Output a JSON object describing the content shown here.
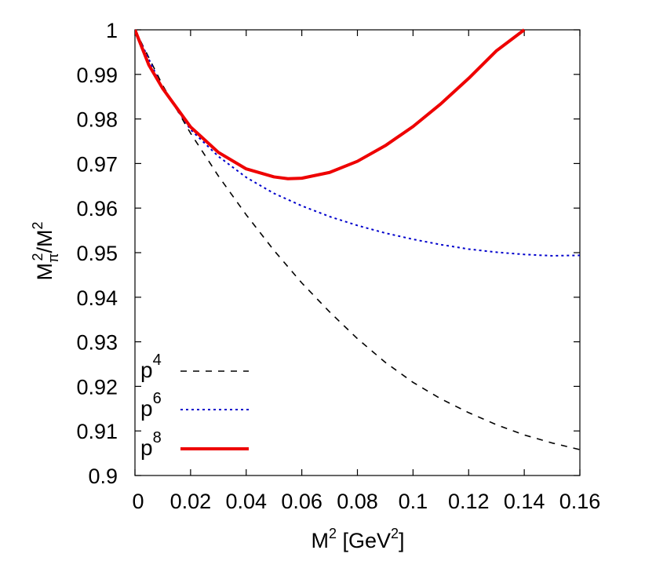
{
  "chart_data": {
    "type": "line",
    "xlabel": {
      "base": "M",
      "sup": "2",
      "middle": " [GeV",
      "sup2": "2",
      "end": "]"
    },
    "ylabel": {
      "base": "M",
      "sub": "π",
      "sup": "2",
      "tail": "/M",
      "sup2": "2"
    },
    "xlim": [
      0,
      0.16
    ],
    "ylim": [
      0.9,
      1.0
    ],
    "xticks": [
      {
        "value": 0,
        "label": "0"
      },
      {
        "value": 0.02,
        "label": "0.02"
      },
      {
        "value": 0.04,
        "label": "0.04"
      },
      {
        "value": 0.06,
        "label": "0.06"
      },
      {
        "value": 0.08,
        "label": "0.08"
      },
      {
        "value": 0.1,
        "label": "0.1"
      },
      {
        "value": 0.12,
        "label": "0.12"
      },
      {
        "value": 0.14,
        "label": "0.14"
      },
      {
        "value": 0.16,
        "label": "0.16"
      }
    ],
    "yticks": [
      {
        "value": 0.9,
        "label": "0.9"
      },
      {
        "value": 0.91,
        "label": "0.91"
      },
      {
        "value": 0.92,
        "label": "0.92"
      },
      {
        "value": 0.93,
        "label": "0.93"
      },
      {
        "value": 0.94,
        "label": "0.94"
      },
      {
        "value": 0.95,
        "label": "0.95"
      },
      {
        "value": 0.96,
        "label": "0.96"
      },
      {
        "value": 0.97,
        "label": "0.97"
      },
      {
        "value": 0.98,
        "label": "0.98"
      },
      {
        "value": 0.99,
        "label": "0.99"
      },
      {
        "value": 1.0,
        "label": "1"
      }
    ],
    "grid": false,
    "legend_position": "bottom-left",
    "series": [
      {
        "name": "p4",
        "legend_base": "p",
        "legend_sup": "4",
        "color": "#000000",
        "style": "dashed",
        "x": [
          0,
          0.01,
          0.02,
          0.03,
          0.04,
          0.05,
          0.06,
          0.07,
          0.08,
          0.09,
          0.1,
          0.11,
          0.12,
          0.13,
          0.14,
          0.15,
          0.16
        ],
        "y": [
          1.0,
          0.9875,
          0.9768,
          0.9672,
          0.9585,
          0.9505,
          0.9432,
          0.9367,
          0.9307,
          0.9254,
          0.9209,
          0.9172,
          0.9141,
          0.9114,
          0.9091,
          0.9073,
          0.9058
        ]
      },
      {
        "name": "p6",
        "legend_base": "p",
        "legend_sup": "6",
        "color": "#0000cc",
        "style": "dotted",
        "x": [
          0,
          0.01,
          0.02,
          0.03,
          0.04,
          0.05,
          0.06,
          0.07,
          0.08,
          0.09,
          0.1,
          0.11,
          0.12,
          0.13,
          0.14,
          0.15,
          0.16
        ],
        "y": [
          1.0,
          0.9868,
          0.9776,
          0.9716,
          0.9669,
          0.9633,
          0.9605,
          0.9581,
          0.9561,
          0.9544,
          0.953,
          0.9518,
          0.9508,
          0.9501,
          0.9496,
          0.9493,
          0.9494
        ]
      },
      {
        "name": "p8",
        "legend_base": "p",
        "legend_sup": "8",
        "color": "#ee0000",
        "style": "solid",
        "x": [
          0,
          0.005,
          0.01,
          0.02,
          0.03,
          0.04,
          0.05,
          0.055,
          0.06,
          0.07,
          0.08,
          0.09,
          0.1,
          0.11,
          0.12,
          0.13,
          0.14
        ],
        "y": [
          1.0,
          0.9921,
          0.9868,
          0.9782,
          0.9725,
          0.9688,
          0.967,
          0.9666,
          0.9667,
          0.968,
          0.9705,
          0.974,
          0.9783,
          0.9834,
          0.9891,
          0.9953,
          1.0
        ]
      }
    ]
  }
}
